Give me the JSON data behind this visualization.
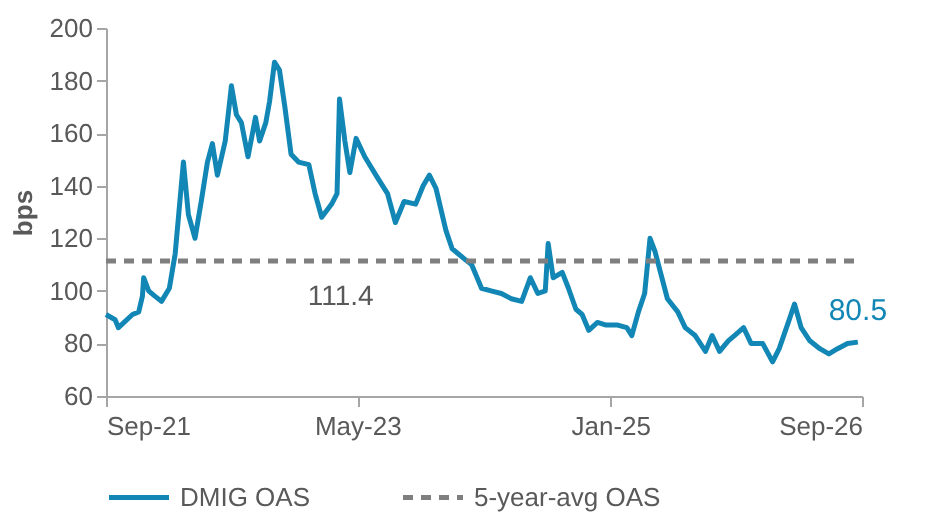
{
  "chart_data": {
    "type": "line",
    "ylabel": "bps",
    "xlim": [
      "2021-09-01",
      "2026-09-01"
    ],
    "xticks": [
      {
        "value": "2021-09-01",
        "label": "Sep-21"
      },
      {
        "value": "2023-05-01",
        "label": "May-23"
      },
      {
        "value": "2025-01-01",
        "label": "Jan-25"
      },
      {
        "value": "2026-09-01",
        "label": "Sep-26"
      }
    ],
    "ylim": [
      60,
      200
    ],
    "yticks": [
      60,
      80,
      100,
      120,
      140,
      160,
      180,
      200
    ],
    "grid": false,
    "legend": "bottom",
    "series": [
      {
        "name": "DMIG OAS",
        "line_style": "solid",
        "color": "#1287b5",
        "x": [
          "2021-09-01",
          "2021-09-23",
          "2021-10-01",
          "2021-11-04",
          "2021-11-19",
          "2021-11-28",
          "2021-12-01",
          "2021-12-13",
          "2021-12-28",
          "2022-01-13",
          "2022-02-01",
          "2022-02-15",
          "2022-03-07",
          "2022-03-19",
          "2022-04-04",
          "2022-04-19",
          "2022-05-04",
          "2022-05-16",
          "2022-05-28",
          "2022-06-16",
          "2022-07-01",
          "2022-07-13",
          "2022-07-25",
          "2022-08-10",
          "2022-08-28",
          "2022-09-07",
          "2022-09-22",
          "2022-10-01",
          "2022-10-13",
          "2022-10-25",
          "2022-11-07",
          "2022-11-22",
          "2022-12-10",
          "2023-01-04",
          "2023-01-19",
          "2023-02-04",
          "2023-02-28",
          "2023-03-13",
          "2023-03-19",
          "2023-04-01",
          "2023-04-13",
          "2023-04-28",
          "2023-05-19",
          "2023-06-19",
          "2023-07-13",
          "2023-08-01",
          "2023-08-22",
          "2023-09-19",
          "2023-10-07",
          "2023-10-22",
          "2023-11-07",
          "2023-12-01",
          "2023-12-16",
          "2024-01-16",
          "2024-02-01",
          "2024-02-25",
          "2024-03-19",
          "2024-04-13",
          "2024-05-07",
          "2024-06-01",
          "2024-06-22",
          "2024-07-10",
          "2024-07-28",
          "2024-08-04",
          "2024-08-16",
          "2024-09-07",
          "2024-09-22",
          "2024-10-10",
          "2024-10-25",
          "2024-11-10",
          "2024-12-01",
          "2024-12-22",
          "2025-01-19",
          "2025-02-10",
          "2025-02-22",
          "2025-03-10",
          "2025-03-25",
          "2025-04-07",
          "2025-04-19",
          "2025-05-04",
          "2025-05-19",
          "2025-06-13",
          "2025-07-01",
          "2025-07-25",
          "2025-08-19",
          "2025-09-04",
          "2025-09-22",
          "2025-10-13",
          "2025-10-28",
          "2025-11-19",
          "2025-12-07",
          "2026-01-04",
          "2026-01-28",
          "2026-02-13",
          "2026-03-07",
          "2026-03-22",
          "2026-04-07",
          "2026-04-28",
          "2026-05-22",
          "2026-06-13",
          "2026-07-04",
          "2026-07-28",
          "2026-08-22"
        ],
        "values": [
          91,
          89,
          86,
          91,
          92,
          98,
          105,
          100,
          98,
          96,
          101,
          114,
          149,
          129,
          120,
          134,
          149,
          156,
          144,
          157,
          178,
          167,
          164,
          151,
          166,
          157,
          164,
          172,
          187,
          184,
          170,
          152,
          149,
          148,
          137,
          128,
          133,
          137,
          173,
          157,
          145,
          158,
          151,
          143,
          137,
          126,
          134,
          133,
          140,
          144,
          139,
          123,
          116,
          112,
          110,
          101,
          100,
          99,
          97,
          96,
          105,
          99,
          100,
          118,
          105,
          107,
          101,
          93,
          91,
          85,
          88,
          87,
          87,
          86,
          83,
          92,
          99,
          120,
          115,
          106,
          97,
          92,
          86,
          83,
          77,
          83,
          77,
          81,
          83,
          86,
          80,
          80,
          73,
          78,
          88,
          95,
          86,
          81,
          78,
          76,
          78,
          80,
          80.5
        ]
      },
      {
        "name": "5-year-avg OAS",
        "line_style": "dashed",
        "color": "#7f7f7f",
        "x": [
          "2021-09-01",
          "2026-08-22"
        ],
        "values": [
          111.4,
          111.4
        ]
      }
    ],
    "annotations": [
      {
        "text": "111.4",
        "x": "2023-03-22",
        "y": 111.4
      },
      {
        "text": "80.5",
        "x": "2026-08-22",
        "y": 80.5
      }
    ]
  }
}
